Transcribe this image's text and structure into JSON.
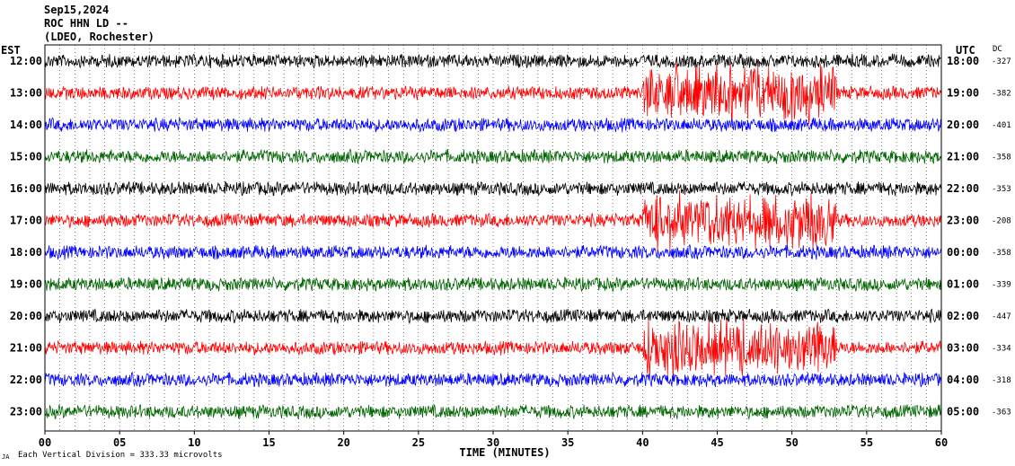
{
  "header": {
    "date": "Sep15,2024",
    "station": "ROC HHN LD --",
    "network": "(LDEO, Rochester)"
  },
  "left_tz": "EST",
  "right_tz": "UTC",
  "dc_header": "DC",
  "footer": {
    "vertical_division": "Each Vertical Division =  333.33 microvolts",
    "marker": "JA"
  },
  "chart_data": {
    "type": "line",
    "xlabel": "TIME (MINUTES)",
    "xlim": [
      0,
      60
    ],
    "x_ticks": [
      "00",
      "05",
      "10",
      "15",
      "20",
      "25",
      "30",
      "35",
      "40",
      "45",
      "50",
      "55",
      "60"
    ],
    "rows": [
      {
        "est": "12:00",
        "utc": "18:00",
        "dc": "-327",
        "color": "#000000"
      },
      {
        "est": "13:00",
        "utc": "19:00",
        "dc": "-382",
        "color": "#ff0000"
      },
      {
        "est": "14:00",
        "utc": "20:00",
        "dc": "-401",
        "color": "#0000ff"
      },
      {
        "est": "15:00",
        "utc": "21:00",
        "dc": "-358",
        "color": "#006400"
      },
      {
        "est": "16:00",
        "utc": "22:00",
        "dc": "-353",
        "color": "#000000"
      },
      {
        "est": "17:00",
        "utc": "23:00",
        "dc": "-208",
        "color": "#ff0000"
      },
      {
        "est": "18:00",
        "utc": "00:00",
        "dc": "-358",
        "color": "#0000ff"
      },
      {
        "est": "19:00",
        "utc": "01:00",
        "dc": "-339",
        "color": "#006400"
      },
      {
        "est": "20:00",
        "utc": "02:00",
        "dc": "-447",
        "color": "#000000"
      },
      {
        "est": "21:00",
        "utc": "03:00",
        "dc": "-334",
        "color": "#ff0000"
      },
      {
        "est": "22:00",
        "utc": "04:00",
        "dc": "-318",
        "color": "#0000ff"
      },
      {
        "est": "23:00",
        "utc": "05:00",
        "dc": "-363",
        "color": "#006400"
      }
    ],
    "grid": true
  }
}
